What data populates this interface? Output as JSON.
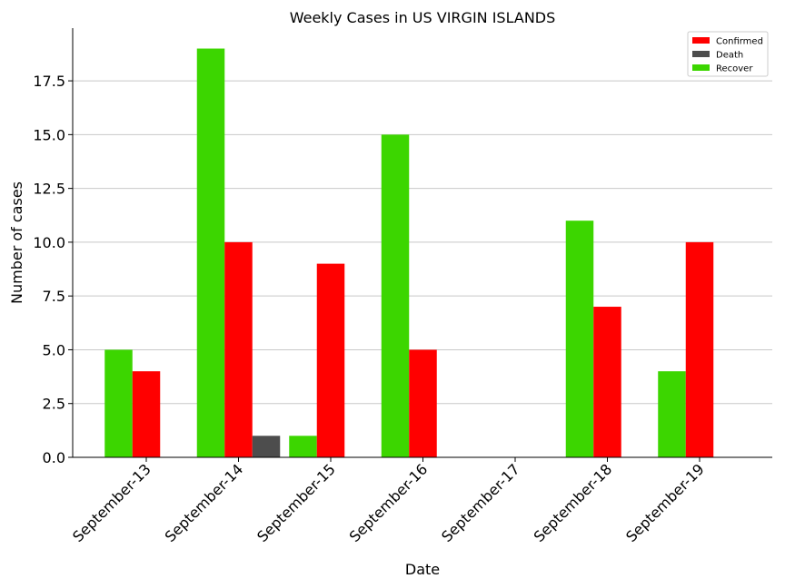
{
  "chart_data": {
    "type": "bar",
    "title": "Weekly Cases in US VIRGIN ISLANDS",
    "xlabel": "Date",
    "ylabel": "Number of cases",
    "categories": [
      "September-13",
      "September-14",
      "September-15",
      "September-16",
      "September-17",
      "September-18",
      "September-19"
    ],
    "ylim": [
      0,
      19.95
    ],
    "yticks": [
      "0.0",
      "2.5",
      "5.0",
      "7.5",
      "10.0",
      "12.5",
      "15.0",
      "17.5"
    ],
    "grid": "horizontal",
    "legend_position": "top-right",
    "series": [
      {
        "name": "Recover",
        "color": "#3cd600",
        "values": [
          5,
          19,
          1,
          15,
          0,
          11,
          4
        ]
      },
      {
        "name": "Confirmed",
        "color": "#ff0000",
        "values": [
          4,
          10,
          9,
          5,
          0,
          7,
          10
        ]
      },
      {
        "name": "Death",
        "color": "#4d4d4d",
        "values": [
          0,
          1,
          0,
          0,
          0,
          0,
          0
        ]
      }
    ],
    "legend": [
      {
        "name": "Confirmed",
        "color": "#ff0000"
      },
      {
        "name": "Death",
        "color": "#4d4d4d"
      },
      {
        "name": "Recover",
        "color": "#3cd600"
      }
    ]
  }
}
